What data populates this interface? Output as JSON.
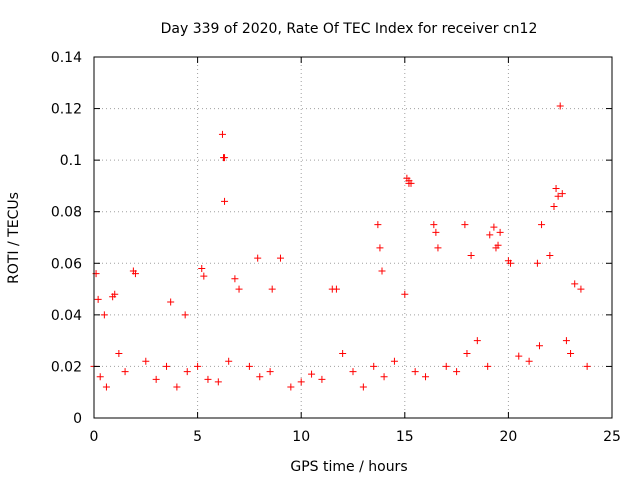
{
  "chart_data": {
    "type": "scatter",
    "title": "Day 339 of 2020, Rate Of TEC Index for receiver cn12",
    "xlabel": "GPS time / hours",
    "ylabel": "ROTI / TECUs",
    "xlim": [
      0,
      25
    ],
    "ylim": [
      0,
      0.14
    ],
    "xticks": [
      0,
      5,
      10,
      15,
      20,
      25
    ],
    "yticks": [
      0,
      0.02,
      0.04,
      0.06,
      0.08,
      0.1,
      0.12,
      0.14
    ],
    "grid": true,
    "marker": "+",
    "color": "#ff0000",
    "series": [
      {
        "x": [
          0.1,
          0.2,
          0.5,
          0.9,
          1.0,
          1.9,
          2.0,
          3.7,
          4.4,
          5.2,
          5.3,
          6.2,
          6.25,
          6.3,
          6.3,
          6.8,
          7.0,
          7.9,
          8.6,
          9.0,
          11.5,
          11.7,
          13.7,
          13.8,
          13.9,
          15.0,
          15.1,
          15.2,
          15.2,
          15.3,
          16.4,
          16.5,
          16.6,
          17.9,
          18.2,
          19.1,
          19.3,
          19.4,
          19.5,
          19.6,
          20.0,
          20.1,
          21.4,
          21.6,
          22.0,
          22.2,
          22.3,
          22.4,
          22.5,
          22.6,
          23.2,
          23.5,
          0.0,
          0.3,
          0.6,
          1.2,
          1.5,
          2.5,
          3.0,
          3.5,
          4.0,
          4.5,
          5.0,
          5.5,
          6.0,
          6.5,
          7.5,
          8.0,
          8.5,
          9.5,
          10.0,
          10.5,
          11.0,
          12.0,
          12.5,
          13.0,
          13.5,
          14.0,
          14.5,
          15.5,
          16.0,
          17.0,
          17.5,
          18.0,
          18.5,
          19.0,
          20.5,
          21.0,
          21.5,
          22.8,
          23.0,
          23.8
        ],
        "y": [
          0.056,
          0.046,
          0.04,
          0.047,
          0.048,
          0.057,
          0.056,
          0.045,
          0.04,
          0.058,
          0.055,
          0.11,
          0.101,
          0.101,
          0.084,
          0.054,
          0.05,
          0.062,
          0.05,
          0.062,
          0.05,
          0.05,
          0.075,
          0.066,
          0.057,
          0.048,
          0.093,
          0.092,
          0.091,
          0.091,
          0.075,
          0.072,
          0.066,
          0.075,
          0.063,
          0.071,
          0.074,
          0.066,
          0.067,
          0.072,
          0.061,
          0.06,
          0.06,
          0.075,
          0.063,
          0.082,
          0.089,
          0.086,
          0.121,
          0.087,
          0.052,
          0.05,
          0.02,
          0.016,
          0.012,
          0.025,
          0.018,
          0.022,
          0.015,
          0.02,
          0.012,
          0.018,
          0.02,
          0.015,
          0.014,
          0.022,
          0.02,
          0.016,
          0.018,
          0.012,
          0.014,
          0.017,
          0.015,
          0.025,
          0.018,
          0.012,
          0.02,
          0.016,
          0.022,
          0.018,
          0.016,
          0.02,
          0.018,
          0.025,
          0.03,
          0.02,
          0.024,
          0.022,
          0.028,
          0.03,
          0.025,
          0.02
        ]
      }
    ]
  }
}
